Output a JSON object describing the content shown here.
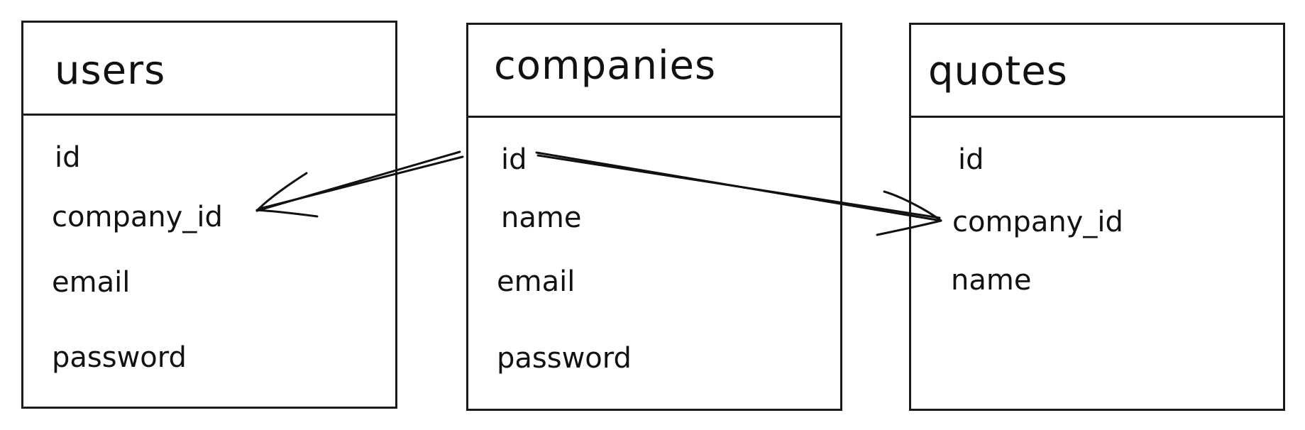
{
  "tables": [
    {
      "name": "users",
      "fields": [
        "id",
        "company_id",
        "email",
        "password"
      ]
    },
    {
      "name": "companies",
      "fields": [
        "id",
        "name",
        "email",
        "password"
      ]
    },
    {
      "name": "quotes",
      "fields": [
        "id",
        "company_id",
        "name"
      ]
    }
  ],
  "relations": [
    {
      "from": "companies.id",
      "to": "users.company_id"
    },
    {
      "from": "companies.id",
      "to": "quotes.company_id"
    }
  ]
}
